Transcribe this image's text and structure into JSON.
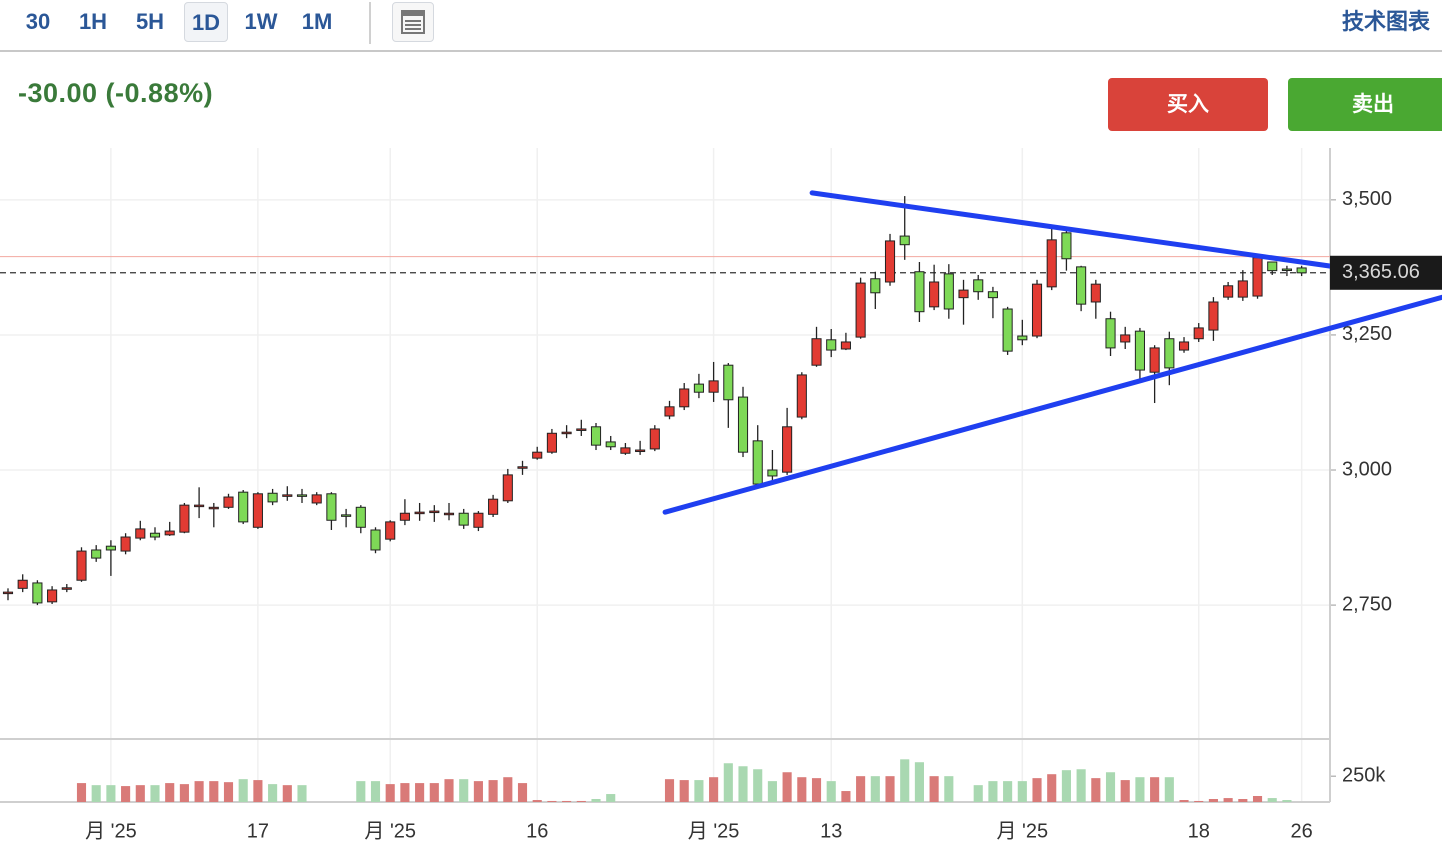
{
  "toolbar": {
    "intervals": [
      "30",
      "1H",
      "5H",
      "1D",
      "1W",
      "1M"
    ],
    "selected_index": 3,
    "right_label": "技术图表"
  },
  "quote": {
    "change": "-30.00 (-0.88%)"
  },
  "actions": {
    "buy": "买入",
    "sell": "卖出"
  },
  "chart_data": {
    "type": "candlestick",
    "up_color": "#e23b33",
    "down_color": "#7ed957",
    "volume_up_color": "#d97a78",
    "volume_down_color": "#a9d8b1",
    "open": [
      2774,
      2781,
      2791,
      2756,
      2781,
      2796,
      2852,
      2859,
      2850,
      2874,
      2883,
      2880,
      2885,
      2933,
      2930,
      2931,
      2959,
      2894,
      2957,
      2952,
      2954,
      2939,
      2956,
      2917,
      2931,
      2889,
      2872,
      2907,
      2920,
      2922,
      2918,
      2920,
      2894,
      2918,
      2943,
      3004,
      3022,
      3033,
      3068,
      3074,
      3080,
      3052,
      3031,
      3035,
      3039,
      3100,
      3117,
      3159,
      3144,
      3194,
      3135,
      3054,
      3000,
      2996,
      3098,
      3194,
      3241,
      3224,
      3246,
      3354,
      3348,
      3433,
      3367,
      3302,
      3363,
      3319,
      3352,
      3330,
      3298,
      3248,
      3248,
      3339,
      3439,
      3376,
      3311,
      3280,
      3237,
      3257,
      3181,
      3243,
      3222,
      3243,
      3259,
      3320,
      3320,
      3322,
      3385,
      3372,
      3374
    ],
    "high": [
      2781,
      2807,
      2796,
      2785,
      2789,
      2857,
      2861,
      2870,
      2883,
      2906,
      2894,
      2904,
      2939,
      2968,
      2939,
      2956,
      2963,
      2959,
      2965,
      2970,
      2965,
      2959,
      2959,
      2928,
      2935,
      2894,
      2907,
      2946,
      2939,
      2935,
      2939,
      2928,
      2924,
      2954,
      3002,
      3017,
      3043,
      3076,
      3083,
      3093,
      3087,
      3063,
      3050,
      3054,
      3083,
      3128,
      3161,
      3178,
      3200,
      3198,
      3154,
      3083,
      3037,
      3115,
      3181,
      3265,
      3261,
      3254,
      3356,
      3367,
      3437,
      3507,
      3385,
      3380,
      3381,
      3352,
      3361,
      3339,
      3302,
      3278,
      3352,
      3448,
      3444,
      3378,
      3352,
      3293,
      3265,
      3263,
      3231,
      3256,
      3246,
      3272,
      3320,
      3348,
      3370,
      3398,
      3385,
      3378,
      3378
    ],
    "low": [
      2759,
      2774,
      2750,
      2752,
      2774,
      2793,
      2830,
      2804,
      2844,
      2870,
      2870,
      2878,
      2883,
      2911,
      2894,
      2928,
      2900,
      2891,
      2935,
      2943,
      2939,
      2935,
      2889,
      2894,
      2883,
      2846,
      2868,
      2898,
      2906,
      2904,
      2907,
      2891,
      2887,
      2913,
      2939,
      2991,
      3019,
      3030,
      3059,
      3063,
      3037,
      3037,
      3028,
      3028,
      3035,
      3094,
      3111,
      3133,
      3126,
      3078,
      3024,
      2967,
      2981,
      2991,
      3094,
      3191,
      3209,
      3222,
      3243,
      3298,
      3341,
      3389,
      3274,
      3296,
      3280,
      3269,
      3315,
      3281,
      3213,
      3231,
      3244,
      3333,
      3369,
      3294,
      3280,
      3211,
      3224,
      3167,
      3124,
      3157,
      3217,
      3237,
      3239,
      3315,
      3313,
      3317,
      3361,
      3359,
      3359
    ],
    "close": [
      2774,
      2796,
      2754,
      2778,
      2782,
      2850,
      2837,
      2852,
      2876,
      2891,
      2876,
      2887,
      2935,
      2935,
      2931,
      2950,
      2904,
      2956,
      2941,
      2954,
      2952,
      2954,
      2907,
      2915,
      2894,
      2852,
      2904,
      2920,
      2922,
      2924,
      2920,
      2898,
      2920,
      2946,
      2991,
      3006,
      3033,
      3068,
      3070,
      3076,
      3046,
      3043,
      3041,
      3037,
      3076,
      3117,
      3150,
      3144,
      3165,
      3130,
      3033,
      2974,
      2989,
      3080,
      3176,
      3243,
      3222,
      3237,
      3346,
      3328,
      3424,
      3417,
      3293,
      3348,
      3298,
      3333,
      3330,
      3319,
      3220,
      3241,
      3344,
      3426,
      3391,
      3307,
      3344,
      3226,
      3250,
      3185,
      3226,
      3189,
      3237,
      3263,
      3311,
      3341,
      3350,
      3393,
      3369,
      3370,
      3365
    ],
    "volume": [
      null,
      null,
      null,
      null,
      null,
      183000,
      163000,
      163000,
      154000,
      163000,
      163000,
      183000,
      173000,
      202000,
      202000,
      192000,
      221000,
      212000,
      173000,
      163000,
      163000,
      null,
      null,
      null,
      202000,
      202000,
      173000,
      183000,
      183000,
      183000,
      221000,
      221000,
      202000,
      212000,
      240000,
      183000,
      19000,
      10000,
      10000,
      10000,
      29000,
      77000,
      null,
      null,
      null,
      221000,
      212000,
      212000,
      240000,
      375000,
      346000,
      317000,
      202000,
      288000,
      240000,
      231000,
      202000,
      106000,
      250000,
      250000,
      250000,
      413000,
      385000,
      250000,
      250000,
      null,
      163000,
      202000,
      202000,
      202000,
      231000,
      269000,
      308000,
      317000,
      231000,
      288000,
      212000,
      240000,
      240000,
      240000,
      19000,
      10000,
      29000,
      38000,
      29000,
      58000,
      38000,
      19000,
      null
    ],
    "xlim": [
      -0.544,
      89.93
    ],
    "xticks": [
      {
        "value": 7,
        "label": "月 '25"
      },
      {
        "value": 17,
        "label": "17"
      },
      {
        "value": 26,
        "label": "月 '25"
      },
      {
        "value": 36,
        "label": "16"
      },
      {
        "value": 48,
        "label": "月 '25"
      },
      {
        "value": 56,
        "label": "13"
      },
      {
        "value": 69,
        "label": "月 '25"
      },
      {
        "value": 81,
        "label": "18"
      },
      {
        "value": 88,
        "label": "26"
      }
    ],
    "ylim": [
      2504,
      3596
    ],
    "yticks": [
      {
        "value": 2750,
        "label": "2,750"
      },
      {
        "value": 3000,
        "label": "3,000"
      },
      {
        "value": 3250,
        "label": "3,250"
      },
      {
        "value": 3500,
        "label": "3,500"
      }
    ],
    "volume_ylim": [
      0,
      600000
    ],
    "volume_yticks": [
      {
        "value": 250000,
        "label": "250k"
      }
    ],
    "last_price": {
      "value": 3365.06,
      "label": "3,365.06"
    },
    "reference_price": 3395.06,
    "grid": true,
    "trendlines": [
      {
        "color": "#1f3ff0",
        "x": [
          54.7,
          97.6
        ],
        "y": [
          3513,
          3348
        ]
      },
      {
        "color": "#1f3ff0",
        "x": [
          44.7,
          97.6
        ],
        "y": [
          2922,
          3320
        ]
      }
    ]
  }
}
